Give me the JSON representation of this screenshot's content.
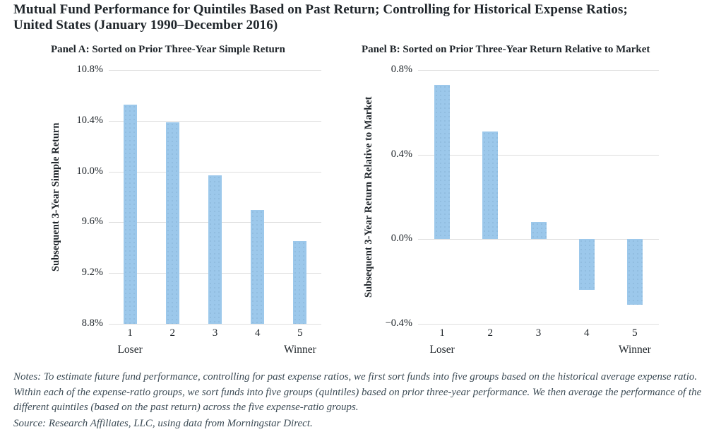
{
  "title": {
    "line1": "Mutual Fund Performance for Quintiles Based on Past Return; Controlling for Historical Expense Ratios;",
    "line2": "United States (January 1990–December 2016)"
  },
  "chart_data": [
    {
      "type": "bar",
      "title": "Panel A: Sorted on Prior Three-Year Simple Return",
      "ylabel": "Subsequent 3-Year Simple Return",
      "xlabel": "",
      "categories": [
        "1",
        "2",
        "3",
        "4",
        "5"
      ],
      "category_sublabels": [
        "Loser",
        "",
        "",
        "",
        "Winner"
      ],
      "values": [
        10.53,
        10.39,
        9.97,
        9.7,
        9.45
      ],
      "unit": "percent",
      "ylim": [
        8.8,
        10.8
      ],
      "yticks": [
        {
          "value": 10.8,
          "label": "10.8%"
        },
        {
          "value": 10.4,
          "label": "10.4%"
        },
        {
          "value": 10.0,
          "label": "10.0%"
        },
        {
          "value": 9.6,
          "label": "9.6%"
        },
        {
          "value": 9.2,
          "label": "9.2%"
        },
        {
          "value": 8.8,
          "label": "8.8%"
        }
      ],
      "grid": "horizontal",
      "legend": "none"
    },
    {
      "type": "bar",
      "title": "Panel B: Sorted on Prior Three-Year Return Relative to Market",
      "ylabel": "Subsequent 3-Year Return Relative to Market",
      "xlabel": "",
      "categories": [
        "1",
        "2",
        "3",
        "4",
        "5"
      ],
      "category_sublabels": [
        "Loser",
        "",
        "",
        "",
        "Winner"
      ],
      "values": [
        0.73,
        0.51,
        0.08,
        -0.24,
        -0.31
      ],
      "unit": "percent",
      "ylim": [
        -0.4,
        0.8
      ],
      "yticks": [
        {
          "value": 0.8,
          "label": "0.8%"
        },
        {
          "value": 0.4,
          "label": "0.4%"
        },
        {
          "value": 0.0,
          "label": "0.0%"
        },
        {
          "value": -0.4,
          "label": "−0.4%"
        }
      ],
      "grid": "horizontal",
      "legend": "none"
    }
  ],
  "notes": "Notes: To estimate future fund performance, controlling for past expense ratios, we first sort funds into five groups based on the historical average expense ratio. Within each of the expense-ratio groups, we sort funds into five groups (quintiles) based on prior three-year performance. We then average the performance of the different quintiles (based on the past return) across the five expense-ratio groups.",
  "source": "Source: Research Affiliates, LLC, using data from Morningstar Direct.",
  "colors": {
    "bar_fill": "#9cc8eb",
    "bar_dot": "#8db9dd",
    "gridline": "#dedede",
    "text": "#20262b",
    "notes_text": "#3c4b55"
  }
}
